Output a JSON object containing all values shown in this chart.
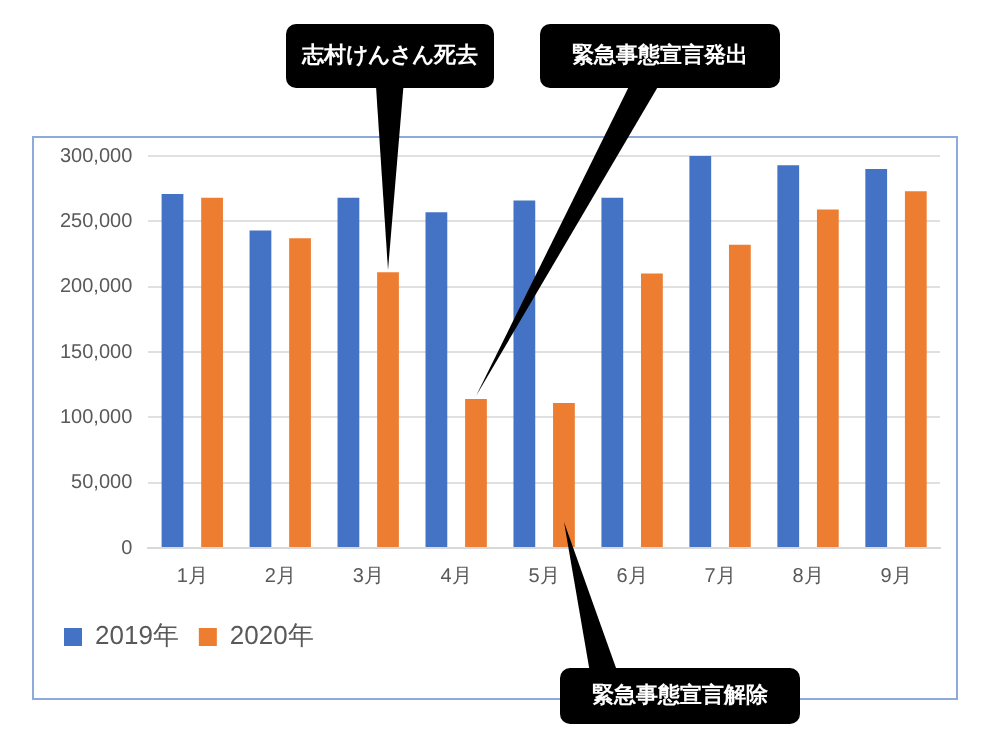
{
  "chart_data": {
    "type": "bar",
    "categories": [
      "1月",
      "2月",
      "3月",
      "4月",
      "5月",
      "6月",
      "7月",
      "8月",
      "9月"
    ],
    "series": [
      {
        "name": "2019年",
        "color": "#4472c4",
        "values": [
          271000,
          243000,
          268000,
          257000,
          266000,
          268000,
          300000,
          293000,
          290000
        ]
      },
      {
        "name": "2020年",
        "color": "#ed7d31",
        "values": [
          268000,
          237000,
          211000,
          114000,
          111000,
          210000,
          232000,
          259000,
          273000
        ]
      }
    ],
    "ylim": [
      0,
      300000
    ],
    "yticks": [
      0,
      {
        "value": 50000,
        "label": "50,000"
      },
      {
        "value": 100000,
        "label": "100,000"
      },
      {
        "value": 150000,
        "label": "150,000"
      },
      {
        "value": 200000,
        "label": "200,000"
      },
      {
        "value": 250000,
        "label": "250,000"
      },
      {
        "value": 300000,
        "label": "300,000"
      }
    ],
    "grid": "y",
    "legend": "bottom left",
    "annotations": [
      "志村けんさん死去",
      "緊急事態宣言発出",
      "緊急事態宣言解除"
    ]
  }
}
